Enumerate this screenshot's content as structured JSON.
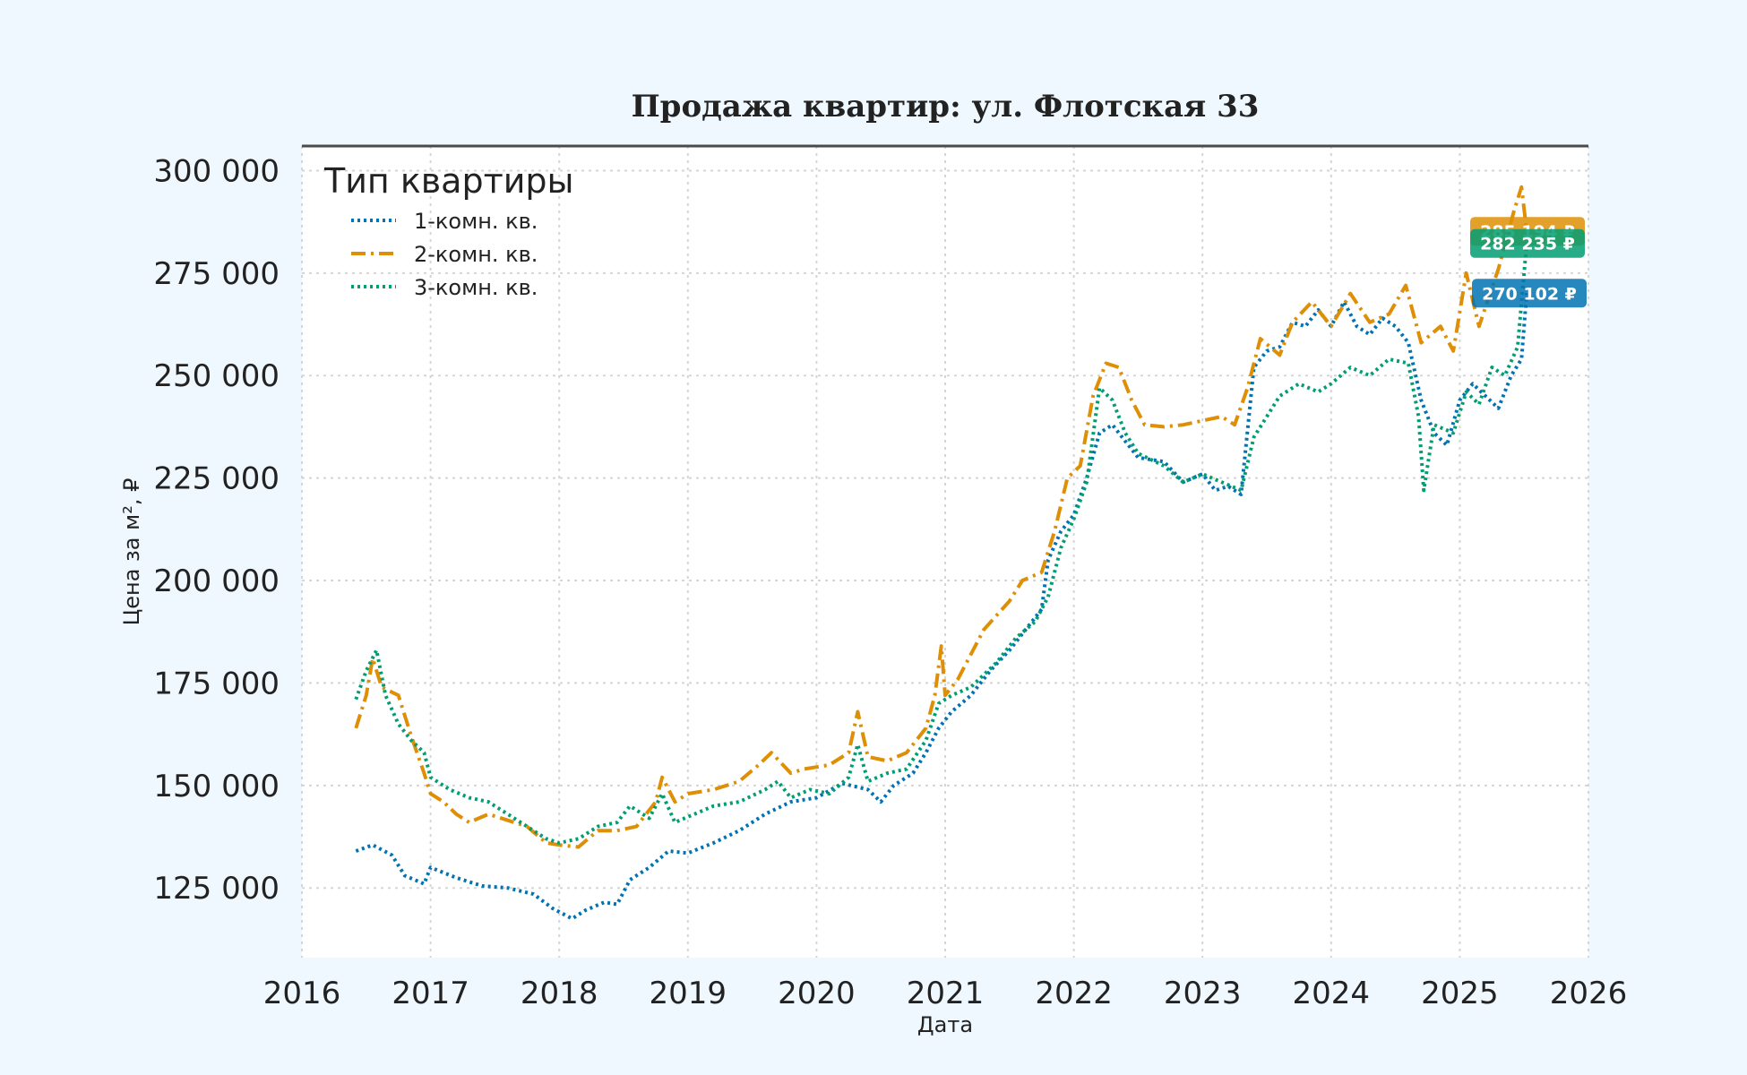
{
  "chart_data": {
    "type": "line",
    "title": "Продажа квартир: ул. Флотская 33",
    "xlabel": "Дата",
    "ylabel": "Цена за м², ₽",
    "xlim": [
      2016,
      2026
    ],
    "ylim": [
      108000,
      306000
    ],
    "x_ticks": [
      "2016",
      "2017",
      "2018",
      "2019",
      "2020",
      "2021",
      "2022",
      "2023",
      "2024",
      "2025",
      "2026"
    ],
    "y_ticks": [
      125000,
      150000,
      175000,
      200000,
      225000,
      250000,
      275000,
      300000
    ],
    "y_tick_labels": [
      "125 000",
      "150 000",
      "175 000",
      "200 000",
      "225 000",
      "250 000",
      "275 000",
      "300 000"
    ],
    "grid": true,
    "legend": {
      "title": "Тип квартиры",
      "placement": "top-left"
    },
    "series": [
      {
        "name": "1-комн. кв.",
        "color": "#0173b2",
        "dash": "dotted",
        "end_label": "270 102 ₽",
        "points": [
          [
            2016.42,
            134000
          ],
          [
            2016.55,
            135500
          ],
          [
            2016.7,
            133000
          ],
          [
            2016.8,
            128000
          ],
          [
            2016.95,
            126000
          ],
          [
            2017.0,
            130000
          ],
          [
            2017.2,
            127500
          ],
          [
            2017.4,
            125500
          ],
          [
            2017.6,
            125000
          ],
          [
            2017.8,
            123500
          ],
          [
            2017.95,
            120000
          ],
          [
            2018.1,
            117500
          ],
          [
            2018.2,
            119500
          ],
          [
            2018.35,
            121500
          ],
          [
            2018.45,
            121000
          ],
          [
            2018.55,
            127000
          ],
          [
            2018.7,
            130000
          ],
          [
            2018.85,
            134000
          ],
          [
            2019.0,
            133500
          ],
          [
            2019.2,
            136000
          ],
          [
            2019.4,
            139000
          ],
          [
            2019.6,
            143000
          ],
          [
            2019.8,
            146000
          ],
          [
            2020.0,
            147000
          ],
          [
            2020.2,
            150500
          ],
          [
            2020.4,
            149000
          ],
          [
            2020.5,
            146000
          ],
          [
            2020.6,
            150000
          ],
          [
            2020.75,
            153000
          ],
          [
            2020.85,
            158000
          ],
          [
            2020.95,
            164000
          ],
          [
            2021.05,
            168000
          ],
          [
            2021.2,
            172000
          ],
          [
            2021.35,
            178000
          ],
          [
            2021.5,
            183000
          ],
          [
            2021.65,
            189000
          ],
          [
            2021.75,
            193000
          ],
          [
            2021.8,
            205000
          ],
          [
            2021.9,
            212000
          ],
          [
            2022.0,
            216000
          ],
          [
            2022.1,
            225000
          ],
          [
            2022.2,
            236000
          ],
          [
            2022.3,
            238000
          ],
          [
            2022.4,
            234000
          ],
          [
            2022.5,
            230000
          ],
          [
            2022.7,
            229000
          ],
          [
            2022.85,
            224000
          ],
          [
            2023.0,
            226000
          ],
          [
            2023.1,
            222000
          ],
          [
            2023.2,
            223000
          ],
          [
            2023.3,
            221000
          ],
          [
            2023.4,
            252000
          ],
          [
            2023.5,
            256000
          ],
          [
            2023.6,
            257000
          ],
          [
            2023.7,
            263000
          ],
          [
            2023.8,
            262000
          ],
          [
            2023.9,
            266000
          ],
          [
            2024.0,
            262000
          ],
          [
            2024.1,
            268000
          ],
          [
            2024.2,
            262000
          ],
          [
            2024.3,
            260000
          ],
          [
            2024.4,
            264000
          ],
          [
            2024.5,
            262000
          ],
          [
            2024.6,
            258000
          ],
          [
            2024.7,
            244000
          ],
          [
            2024.8,
            236000
          ],
          [
            2024.9,
            233000
          ],
          [
            2025.0,
            244000
          ],
          [
            2025.1,
            248000
          ],
          [
            2025.2,
            245000
          ],
          [
            2025.3,
            242000
          ],
          [
            2025.4,
            250000
          ],
          [
            2025.48,
            254000
          ],
          [
            2025.52,
            270102
          ]
        ]
      },
      {
        "name": "2-комн. кв.",
        "color": "#de8f05",
        "dash": "dashdot",
        "end_label": "285 194 ₽",
        "points": [
          [
            2016.42,
            164000
          ],
          [
            2016.5,
            172000
          ],
          [
            2016.55,
            181000
          ],
          [
            2016.62,
            174000
          ],
          [
            2016.75,
            172000
          ],
          [
            2016.85,
            162000
          ],
          [
            2016.95,
            153000
          ],
          [
            2017.0,
            148000
          ],
          [
            2017.1,
            146000
          ],
          [
            2017.2,
            143000
          ],
          [
            2017.3,
            141000
          ],
          [
            2017.45,
            143000
          ],
          [
            2017.6,
            141500
          ],
          [
            2017.75,
            140000
          ],
          [
            2017.9,
            136000
          ],
          [
            2018.0,
            135500
          ],
          [
            2018.15,
            135000
          ],
          [
            2018.3,
            139000
          ],
          [
            2018.45,
            139000
          ],
          [
            2018.6,
            140000
          ],
          [
            2018.75,
            146000
          ],
          [
            2018.8,
            152000
          ],
          [
            2018.9,
            146000
          ],
          [
            2019.0,
            148000
          ],
          [
            2019.2,
            149000
          ],
          [
            2019.4,
            151000
          ],
          [
            2019.55,
            155000
          ],
          [
            2019.65,
            158000
          ],
          [
            2019.8,
            153000
          ],
          [
            2019.9,
            154000
          ],
          [
            2020.1,
            155000
          ],
          [
            2020.25,
            158000
          ],
          [
            2020.32,
            168000
          ],
          [
            2020.4,
            157000
          ],
          [
            2020.55,
            156000
          ],
          [
            2020.7,
            158000
          ],
          [
            2020.85,
            164000
          ],
          [
            2020.92,
            172000
          ],
          [
            2020.97,
            184000
          ],
          [
            2021.0,
            172000
          ],
          [
            2021.1,
            176000
          ],
          [
            2021.3,
            188000
          ],
          [
            2021.5,
            195000
          ],
          [
            2021.6,
            200000
          ],
          [
            2021.75,
            202000
          ],
          [
            2021.85,
            212000
          ],
          [
            2021.95,
            225000
          ],
          [
            2022.05,
            228000
          ],
          [
            2022.15,
            245000
          ],
          [
            2022.25,
            253000
          ],
          [
            2022.35,
            252000
          ],
          [
            2022.45,
            244000
          ],
          [
            2022.55,
            238000
          ],
          [
            2022.7,
            237500
          ],
          [
            2022.85,
            238000
          ],
          [
            2023.0,
            239000
          ],
          [
            2023.15,
            240000
          ],
          [
            2023.25,
            238000
          ],
          [
            2023.35,
            247000
          ],
          [
            2023.45,
            259000
          ],
          [
            2023.6,
            255000
          ],
          [
            2023.7,
            263000
          ],
          [
            2023.85,
            268000
          ],
          [
            2024.0,
            262000
          ],
          [
            2024.15,
            270000
          ],
          [
            2024.3,
            263000
          ],
          [
            2024.45,
            265000
          ],
          [
            2024.58,
            272000
          ],
          [
            2024.7,
            258000
          ],
          [
            2024.85,
            262000
          ],
          [
            2024.95,
            256000
          ],
          [
            2025.05,
            275000
          ],
          [
            2025.15,
            262000
          ],
          [
            2025.3,
            276000
          ],
          [
            2025.42,
            290000
          ],
          [
            2025.48,
            296000
          ],
          [
            2025.52,
            285194
          ]
        ]
      },
      {
        "name": "3-комн. кв.",
        "color": "#029e73",
        "dash": "dotted",
        "end_label": "282 235 ₽",
        "points": [
          [
            2016.42,
            171000
          ],
          [
            2016.5,
            178000
          ],
          [
            2016.58,
            183000
          ],
          [
            2016.65,
            172000
          ],
          [
            2016.75,
            165000
          ],
          [
            2016.85,
            161000
          ],
          [
            2016.95,
            158000
          ],
          [
            2017.0,
            152000
          ],
          [
            2017.15,
            149000
          ],
          [
            2017.3,
            147000
          ],
          [
            2017.45,
            146000
          ],
          [
            2017.6,
            143000
          ],
          [
            2017.75,
            140000
          ],
          [
            2017.9,
            137000
          ],
          [
            2018.0,
            136000
          ],
          [
            2018.15,
            137000
          ],
          [
            2018.3,
            140000
          ],
          [
            2018.45,
            141000
          ],
          [
            2018.55,
            145000
          ],
          [
            2018.7,
            142000
          ],
          [
            2018.8,
            148000
          ],
          [
            2018.9,
            141000
          ],
          [
            2019.05,
            143000
          ],
          [
            2019.2,
            145000
          ],
          [
            2019.4,
            146000
          ],
          [
            2019.6,
            149000
          ],
          [
            2019.7,
            151000
          ],
          [
            2019.8,
            147000
          ],
          [
            2019.95,
            149000
          ],
          [
            2020.1,
            148000
          ],
          [
            2020.25,
            152000
          ],
          [
            2020.32,
            160000
          ],
          [
            2020.4,
            151000
          ],
          [
            2020.55,
            153000
          ],
          [
            2020.7,
            154000
          ],
          [
            2020.85,
            161000
          ],
          [
            2020.95,
            170000
          ],
          [
            2021.05,
            172000
          ],
          [
            2021.2,
            174000
          ],
          [
            2021.4,
            180000
          ],
          [
            2021.55,
            186000
          ],
          [
            2021.7,
            190000
          ],
          [
            2021.8,
            196000
          ],
          [
            2021.9,
            208000
          ],
          [
            2022.0,
            215000
          ],
          [
            2022.1,
            224000
          ],
          [
            2022.2,
            247000
          ],
          [
            2022.3,
            244000
          ],
          [
            2022.4,
            236000
          ],
          [
            2022.5,
            231000
          ],
          [
            2022.7,
            228000
          ],
          [
            2022.85,
            224000
          ],
          [
            2023.0,
            226000
          ],
          [
            2023.15,
            224000
          ],
          [
            2023.3,
            222000
          ],
          [
            2023.4,
            235000
          ],
          [
            2023.5,
            240000
          ],
          [
            2023.6,
            245000
          ],
          [
            2023.75,
            248000
          ],
          [
            2023.9,
            246000
          ],
          [
            2024.0,
            248000
          ],
          [
            2024.15,
            252000
          ],
          [
            2024.3,
            250000
          ],
          [
            2024.45,
            254000
          ],
          [
            2024.6,
            253000
          ],
          [
            2024.68,
            240000
          ],
          [
            2024.72,
            222000
          ],
          [
            2024.8,
            238000
          ],
          [
            2024.95,
            236000
          ],
          [
            2025.05,
            246000
          ],
          [
            2025.15,
            243000
          ],
          [
            2025.25,
            252000
          ],
          [
            2025.35,
            250000
          ],
          [
            2025.45,
            257000
          ],
          [
            2025.52,
            282235
          ]
        ]
      }
    ]
  }
}
